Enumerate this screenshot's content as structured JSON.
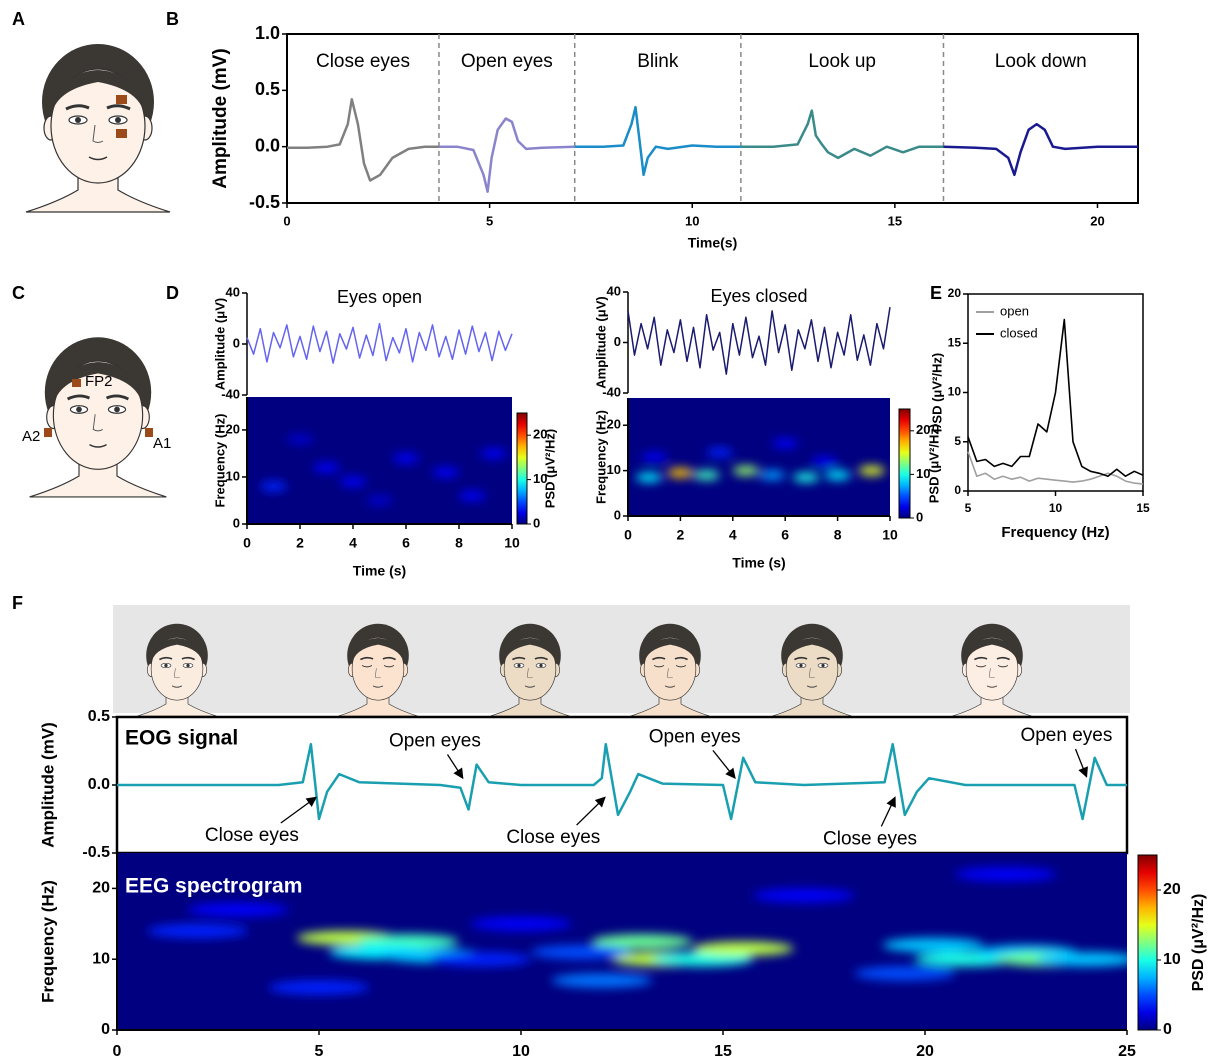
{
  "panel_labels": [
    "A",
    "B",
    "C",
    "D",
    "E",
    "F"
  ],
  "electrode_labels": [
    "FP2",
    "A2",
    "A1"
  ],
  "chart_data": [
    {
      "type": "line",
      "xlabel": "Time(s)",
      "ylabel": "Amplitude (mV)",
      "xlim": [
        0,
        21
      ],
      "ylim": [
        -0.5,
        1.0
      ],
      "xticks": [
        0,
        5,
        10,
        15,
        20
      ],
      "yticks": [
        -0.5,
        {
          "value": 0,
          "label": "0.0"
        },
        0.5,
        {
          "value": 1,
          "label": "1.0"
        }
      ],
      "dividers": [
        3.75,
        7.1,
        11.2,
        16.2
      ],
      "series": [
        {
          "name": "Close eyes",
          "color": "#808080",
          "x": [
            0,
            0.5,
            1.0,
            1.3,
            1.5,
            1.6,
            1.75,
            1.9,
            2.05,
            2.3,
            2.6,
            3.0,
            3.4,
            3.75
          ],
          "values": [
            -0.01,
            -0.01,
            0,
            0.02,
            0.2,
            0.42,
            0.2,
            -0.15,
            -0.3,
            -0.25,
            -0.1,
            -0.02,
            0,
            0
          ]
        },
        {
          "name": "Open eyes",
          "color": "#8a84cc",
          "x": [
            3.75,
            4.2,
            4.6,
            4.85,
            4.95,
            5.05,
            5.2,
            5.4,
            5.55,
            5.7,
            5.9,
            6.3,
            7.1
          ],
          "values": [
            0,
            0,
            -0.03,
            -0.25,
            -0.4,
            -0.1,
            0.15,
            0.25,
            0.22,
            0.05,
            -0.02,
            -0.01,
            0
          ]
        },
        {
          "name": "Blink",
          "color": "#1a8cc8",
          "x": [
            7.1,
            7.8,
            8.3,
            8.5,
            8.6,
            8.7,
            8.8,
            8.9,
            9.1,
            9.4,
            10,
            10.6,
            11.2
          ],
          "values": [
            0,
            0,
            0.01,
            0.2,
            0.35,
            0.05,
            -0.25,
            -0.1,
            0,
            -0.02,
            0.01,
            0,
            0
          ]
        },
        {
          "name": "Look up",
          "color": "#3a8a8a",
          "x": [
            11.2,
            12,
            12.6,
            12.85,
            12.95,
            13.05,
            13.2,
            13.35,
            13.6,
            14,
            14.4,
            14.8,
            15.2,
            15.6,
            16.2
          ],
          "values": [
            0,
            0,
            0.02,
            0.2,
            0.32,
            0.1,
            0.02,
            -0.05,
            -0.1,
            -0.02,
            -0.08,
            0,
            -0.05,
            0,
            0
          ]
        },
        {
          "name": "Look down",
          "color": "#1a1a90",
          "x": [
            16.2,
            17,
            17.5,
            17.8,
            17.95,
            18.1,
            18.3,
            18.5,
            18.7,
            18.9,
            19.2,
            20,
            21
          ],
          "values": [
            0,
            -0.01,
            -0.02,
            -0.1,
            -0.25,
            -0.05,
            0.15,
            0.2,
            0.15,
            0,
            -0.02,
            0,
            0
          ]
        }
      ]
    },
    {
      "type": "line",
      "title": "Eyes open",
      "ylabel": "Amplitude (μV)",
      "xlim": [
        0,
        10
      ],
      "ylim": [
        -40,
        40
      ],
      "yticks": [
        -40,
        0,
        40
      ],
      "x": [
        0,
        0.25,
        0.5,
        0.75,
        1,
        1.25,
        1.5,
        1.75,
        2,
        2.25,
        2.5,
        2.75,
        3,
        3.25,
        3.5,
        3.75,
        4,
        4.25,
        4.5,
        4.75,
        5,
        5.25,
        5.5,
        5.75,
        6,
        6.25,
        6.5,
        6.75,
        7,
        7.25,
        7.5,
        7.75,
        8,
        8.25,
        8.5,
        8.75,
        9,
        9.25,
        9.5,
        9.75,
        10
      ],
      "series": [
        {
          "color": "#6464f0",
          "values": [
            5,
            -8,
            12,
            -14,
            9,
            -3,
            15,
            -10,
            6,
            -12,
            14,
            -6,
            10,
            -15,
            8,
            -4,
            13,
            -11,
            7,
            -9,
            16,
            -13,
            5,
            -7,
            12,
            -14,
            9,
            -5,
            15,
            -10,
            6,
            -12,
            11,
            -8,
            14,
            -6,
            9,
            -13,
            10,
            -5,
            8
          ]
        }
      ]
    },
    {
      "type": "heatmap",
      "xlabel": "Time (s)",
      "ylabel": "Frequency (Hz)",
      "colorbar_label": "PSD (μV²/Hz)",
      "xlim": [
        0,
        10
      ],
      "ylim": [
        0,
        27
      ],
      "xticks": [
        0,
        2,
        4,
        6,
        8,
        10
      ],
      "yticks": [
        0,
        10,
        20
      ],
      "clim": [
        0,
        25
      ],
      "cticks": [
        0,
        10,
        20
      ],
      "x": [
        1,
        3,
        4,
        6,
        7.5,
        2,
        8.5,
        5,
        9.3
      ],
      "y": [
        8,
        12,
        9,
        14,
        11,
        18,
        6,
        5,
        15
      ],
      "values": [
        4,
        3,
        3,
        3,
        3,
        2,
        3,
        2,
        3
      ]
    },
    {
      "type": "line",
      "title": "Eyes closed",
      "ylabel": "Amplitude (μV)",
      "xlim": [
        0,
        10
      ],
      "ylim": [
        -40,
        40
      ],
      "yticks": [
        -40,
        0,
        40
      ],
      "x": [
        0,
        0.25,
        0.5,
        0.75,
        1,
        1.25,
        1.5,
        1.75,
        2,
        2.25,
        2.5,
        2.75,
        3,
        3.25,
        3.5,
        3.75,
        4,
        4.25,
        4.5,
        4.75,
        5,
        5.25,
        5.5,
        5.75,
        6,
        6.25,
        6.5,
        6.75,
        7,
        7.25,
        7.5,
        7.75,
        8,
        8.25,
        8.5,
        8.75,
        9,
        9.25,
        9.5,
        9.75,
        10
      ],
      "series": [
        {
          "color": "#1a1a6e",
          "values": [
            25,
            -10,
            15,
            -5,
            20,
            -18,
            10,
            -8,
            18,
            -15,
            12,
            -20,
            22,
            -6,
            8,
            -25,
            15,
            -10,
            20,
            -12,
            5,
            -18,
            25,
            -8,
            14,
            -22,
            10,
            -5,
            18,
            -15,
            12,
            -20,
            8,
            -10,
            22,
            -14,
            6,
            -18,
            15,
            -5,
            28
          ]
        }
      ]
    },
    {
      "type": "heatmap",
      "xlabel": "Time (s)",
      "ylabel": "Frequency (Hz)",
      "colorbar_label": "PSD (μV²/Hz)",
      "xlim": [
        0,
        10
      ],
      "ylim": [
        0,
        26
      ],
      "xticks": [
        0,
        2,
        4,
        6,
        8,
        10
      ],
      "yticks": [
        0,
        10,
        20
      ],
      "clim": [
        0,
        25
      ],
      "cticks": [
        0,
        10,
        20
      ],
      "x": [
        0.8,
        2,
        3,
        4.5,
        5.5,
        6.8,
        8,
        9.3,
        3.5,
        6,
        1,
        7.5
      ],
      "y": [
        8.5,
        9.5,
        9,
        10,
        9,
        8.5,
        9,
        10,
        14,
        16,
        13,
        12
      ],
      "values": [
        9,
        17,
        11,
        13,
        7,
        10,
        9,
        15,
        4,
        3,
        3,
        3
      ]
    },
    {
      "type": "line",
      "xlabel": "Frequency (Hz)",
      "ylabel": "PSD (μV²/Hz)",
      "xlim": [
        5,
        15
      ],
      "ylim": [
        0,
        20
      ],
      "xticks": [
        5,
        10,
        15
      ],
      "yticks": [
        0,
        5,
        10,
        15,
        20
      ],
      "legend": "upper left",
      "x": [
        5,
        5.5,
        6,
        6.5,
        7,
        7.5,
        8,
        8.5,
        9,
        9.5,
        10,
        10.5,
        11,
        11.5,
        12,
        12.5,
        13,
        13.5,
        14,
        14.5,
        15
      ],
      "series": [
        {
          "name": "open",
          "color": "#a0a0a0",
          "values": [
            4,
            1.5,
            1.8,
            1.2,
            1.5,
            1.2,
            1.4,
            1,
            1.3,
            1.2,
            1.1,
            1,
            0.9,
            1,
            1.2,
            1.5,
            1.8,
            1.5,
            1,
            0.8,
            0.7
          ]
        },
        {
          "name": "closed",
          "color": "#000000",
          "values": [
            5.5,
            3,
            3.2,
            2.5,
            2.8,
            2.5,
            3.5,
            3.5,
            6.8,
            6,
            10,
            17.4,
            5,
            2.5,
            2,
            1.8,
            1.5,
            2.2,
            1.5,
            2,
            1.6
          ]
        }
      ]
    },
    {
      "type": "line",
      "label": "EOG signal",
      "ylabel": "Amplitude (mV)",
      "xlim": [
        0,
        25
      ],
      "ylim": [
        -0.5,
        0.5
      ],
      "yticks": [
        -0.5,
        {
          "value": 0,
          "label": "0.0"
        },
        0.5
      ],
      "x": [
        0,
        2,
        4,
        4.6,
        4.8,
        5,
        5.2,
        5.5,
        6,
        8,
        8.5,
        8.7,
        8.9,
        9.2,
        10,
        11.8,
        12,
        12.1,
        12.4,
        12.7,
        12.9,
        13.5,
        15,
        15.2,
        15.5,
        15.8,
        17,
        19,
        19.2,
        19.5,
        19.8,
        20.1,
        21,
        23.7,
        23.9,
        24.2,
        24.5,
        25
      ],
      "series": [
        {
          "color": "#1a9fb0",
          "values": [
            0,
            0,
            0,
            0.02,
            0.3,
            -0.25,
            -0.05,
            0.08,
            0.02,
            0,
            -0.02,
            -0.18,
            0.15,
            0.02,
            0,
            0,
            0.05,
            0.3,
            -0.22,
            -0.05,
            0.08,
            0.01,
            0,
            -0.25,
            0.2,
            0.02,
            0,
            0.02,
            0.3,
            -0.22,
            -0.05,
            0.05,
            0,
            0,
            -0.25,
            0.2,
            0,
            0
          ]
        }
      ],
      "annotations": [
        {
          "text": "Open eyes",
          "x": 8.56,
          "y": 0.05,
          "text_x": 7.87,
          "text_y": 0.32
        },
        {
          "text": "Open eyes",
          "x": 15.3,
          "y": 0.05,
          "text_x": 14.3,
          "text_y": 0.35
        },
        {
          "text": "Open eyes",
          "x": 24.0,
          "y": 0.06,
          "text_x": 23.5,
          "text_y": 0.36
        },
        {
          "text": "Close eyes",
          "x": 4.93,
          "y": -0.09,
          "text_x": 3.34,
          "text_y": -0.375
        },
        {
          "text": "Close eyes",
          "x": 12.08,
          "y": -0.09,
          "text_x": 10.8,
          "text_y": -0.39
        },
        {
          "text": "Close eyes",
          "x": 19.26,
          "y": -0.09,
          "text_x": 18.64,
          "text_y": -0.4
        }
      ]
    },
    {
      "type": "heatmap",
      "label": "EEG spectrogram",
      "ylabel": "Frequency (Hz)",
      "colorbar_label": "PSD (μV²/Hz)",
      "xlim": [
        0,
        25
      ],
      "ylim": [
        0,
        25
      ],
      "xticks": [
        0,
        5,
        10,
        15,
        20,
        25
      ],
      "yticks": [
        0,
        10,
        20
      ],
      "clim": [
        0,
        25
      ],
      "cticks": [
        0,
        10,
        20
      ],
      "x": [
        5.7,
        7.2,
        6.5,
        7.8,
        13,
        13.5,
        14.5,
        15.5,
        12,
        11.5,
        20.2,
        21,
        22.5,
        23,
        24,
        19.5,
        2,
        10,
        17,
        22,
        5,
        9,
        3
      ],
      "y": [
        13,
        12.5,
        11,
        10.5,
        12.5,
        10,
        10,
        11.5,
        7,
        11,
        12,
        10,
        11,
        10,
        10,
        8,
        14,
        15,
        19,
        22,
        6,
        10,
        17
      ],
      "values": [
        14,
        11,
        9,
        8,
        12,
        14,
        10,
        14,
        6,
        5,
        8,
        10,
        8,
        12,
        8,
        5,
        4,
        3,
        3,
        3,
        4,
        4,
        3
      ]
    }
  ]
}
